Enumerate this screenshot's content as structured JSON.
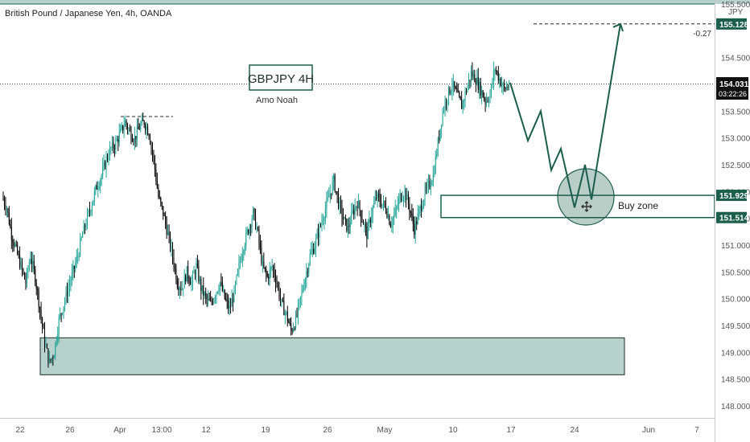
{
  "header": {
    "symbol_line": "British Pound / Japanese Yen, 4h, OANDA",
    "currency": "JPY"
  },
  "annotations": {
    "title_box": "GBPJPY 4H",
    "author": "Amo Noah",
    "buy_zone": "Buy zone",
    "target_delta": "-0.27"
  },
  "price_tags": {
    "target": "155.128",
    "current": "154.031",
    "countdown": "03:22:26",
    "zone_top": "151.929",
    "zone_bottom": "151.514"
  },
  "colors": {
    "up": "#26a69a",
    "down": "#000000",
    "drawing": "#1b5e4a",
    "zone_fill": "#b7d1cc",
    "tag_bg": "#1b5e4a",
    "axis_text": "#555555"
  },
  "chart_data": {
    "type": "candlestick",
    "yunit": "JPY",
    "ylim": [
      148,
      155.6
    ],
    "yticks": [
      148.0,
      148.5,
      149.0,
      149.5,
      150.0,
      150.5,
      151.0,
      151.5,
      152.0,
      152.5,
      153.0,
      153.5,
      154.5,
      155.5
    ],
    "ytick_labels": [
      "148.000",
      "148.500",
      "149.000",
      "149.500",
      "150.000",
      "150.500",
      "151.000",
      "151.500",
      "152.000",
      "152.500",
      "153.000",
      "153.500",
      "154.500",
      "155.500"
    ],
    "xticks": [
      "22",
      "26",
      "Apr",
      "13:00",
      "12",
      "19",
      "26",
      "May",
      "10",
      "17",
      "24",
      "Jun",
      "7"
    ],
    "close_path": [
      151.9,
      151.7,
      151.2,
      150.9,
      150.6,
      150.3,
      150.8,
      150.4,
      149.8,
      149.2,
      148.8,
      149.0,
      149.6,
      149.9,
      150.2,
      150.5,
      150.8,
      151.2,
      151.5,
      151.8,
      152.1,
      152.3,
      152.6,
      152.8,
      152.9,
      153.1,
      153.3,
      153.1,
      153.0,
      153.2,
      153.3,
      153.1,
      152.6,
      151.9,
      151.6,
      151.2,
      150.8,
      150.3,
      150.2,
      150.5,
      150.3,
      150.6,
      150.2,
      150.0,
      149.9,
      150.1,
      150.3,
      150.0,
      149.8,
      150.1,
      150.6,
      151.0,
      151.3,
      151.6,
      151.2,
      150.6,
      150.4,
      150.6,
      150.3,
      149.9,
      149.7,
      149.4,
      149.6,
      150.0,
      150.4,
      150.8,
      151.0,
      151.3,
      151.6,
      151.9,
      152.2,
      151.8,
      151.5,
      151.3,
      151.6,
      151.8,
      151.5,
      151.2,
      151.6,
      151.9,
      151.8,
      151.7,
      151.4,
      151.6,
      151.9,
      152.0,
      151.7,
      151.3,
      151.6,
      151.9,
      152.1,
      152.3,
      152.9,
      153.5,
      153.8,
      154.0,
      153.8,
      153.6,
      153.9,
      154.2,
      154.1,
      153.9,
      153.7,
      153.8,
      154.3,
      154.1,
      153.9,
      154.0
    ],
    "resistance_level": 153.4,
    "support_zone": [
      148.58,
      149.27
    ],
    "buy_zone": [
      151.514,
      151.929
    ],
    "target_level": 155.128,
    "projection_path": [
      154.03,
      152.95,
      153.5,
      152.4,
      152.8,
      151.7,
      152.5,
      151.85,
      152.5,
      155.13
    ]
  }
}
